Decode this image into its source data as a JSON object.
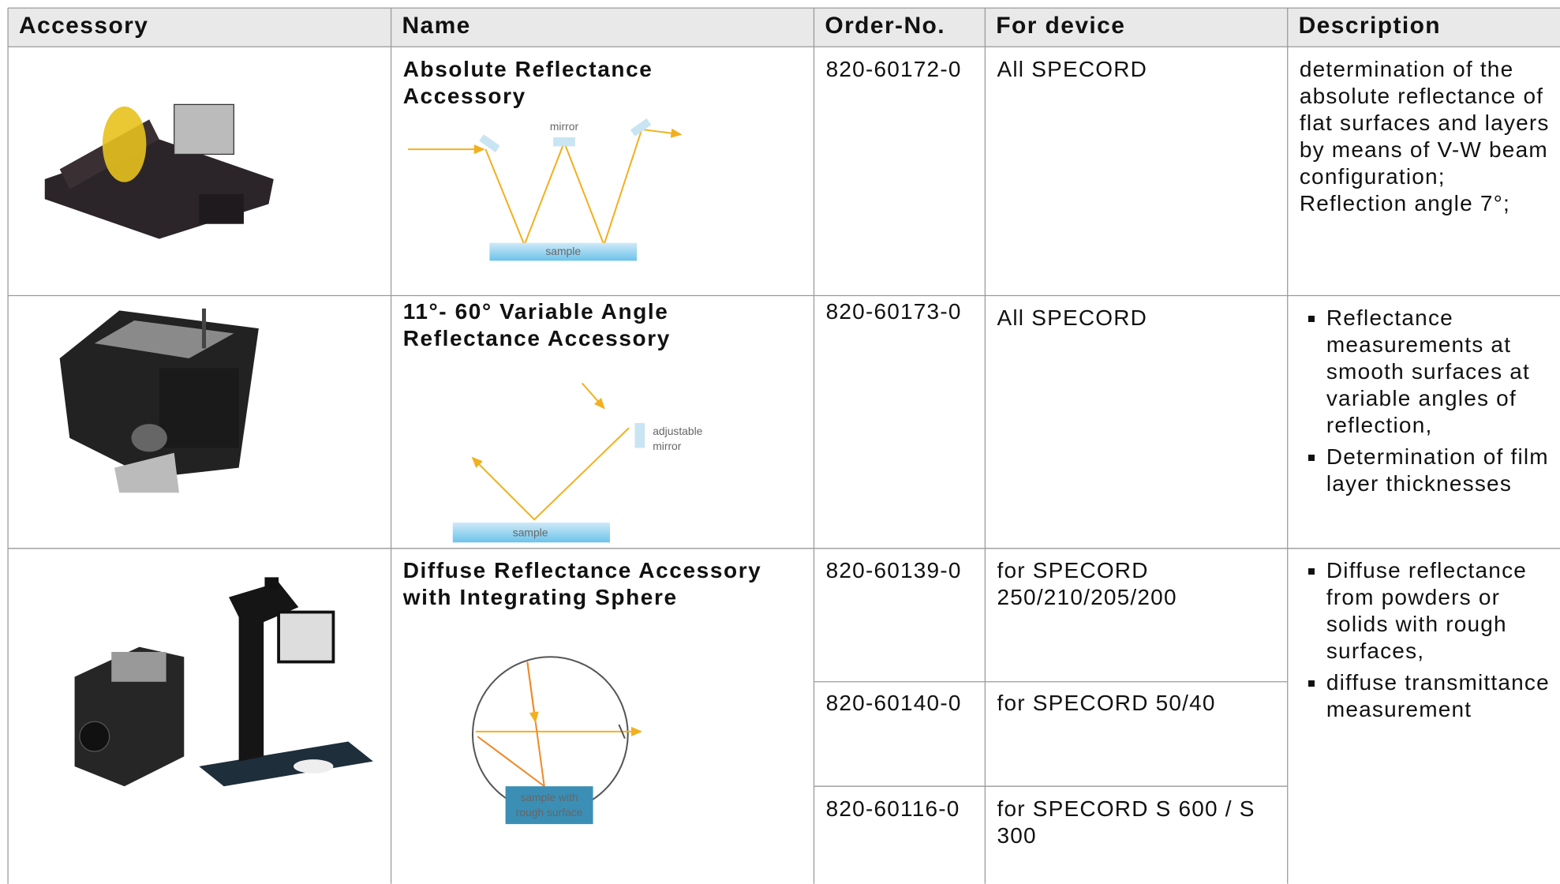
{
  "table": {
    "header": [
      "Accessory",
      "Name",
      "Order-No.",
      "For device",
      "Description"
    ],
    "rows": [
      {
        "name": [
          "Absolute Reflectance",
          "Accessory"
        ],
        "entries": [
          {
            "order_no": "820-60172-0",
            "device": "All SPECORD"
          }
        ],
        "description": {
          "text": [
            "determination of the absolute reflectance of flat surfaces and layers by means of V-W beam configuration;",
            "Reflection angle 7°;"
          ]
        },
        "diagram": {
          "mirror": "mirror",
          "sample": "sample"
        }
      },
      {
        "name": [
          "11°- 60° Variable Angle",
          "Reflectance Accessory"
        ],
        "entries": [
          {
            "order_no": "820-60173-0",
            "device": "All SPECORD"
          }
        ],
        "description": {
          "bullets": [
            "Reflectance measurements at smooth surfaces at variable angles of reflection,",
            "Determination of film layer  thicknesses"
          ]
        },
        "diagram": {
          "mirror": [
            "adjustable",
            "mirror"
          ],
          "sample": "sample"
        }
      },
      {
        "name": [
          "Diffuse Reflectance Accessory",
          "with Integrating Sphere"
        ],
        "entries": [
          {
            "order_no": "820-60139-0",
            "device": "for SPECORD 250/210/205/200"
          },
          {
            "order_no": "820-60140-0",
            "device": "for SPECORD 50/40"
          },
          {
            "order_no": "820-60116-0",
            "device": "for SPECORD S 600 / S 300"
          }
        ],
        "description": {
          "bullets": [
            "Diffuse reflectance from powders or solids with rough surfaces,",
            "diffuse transmittance measurement"
          ]
        },
        "diagram": {
          "sample": [
            "sample with",
            "rough surface"
          ]
        }
      }
    ]
  }
}
